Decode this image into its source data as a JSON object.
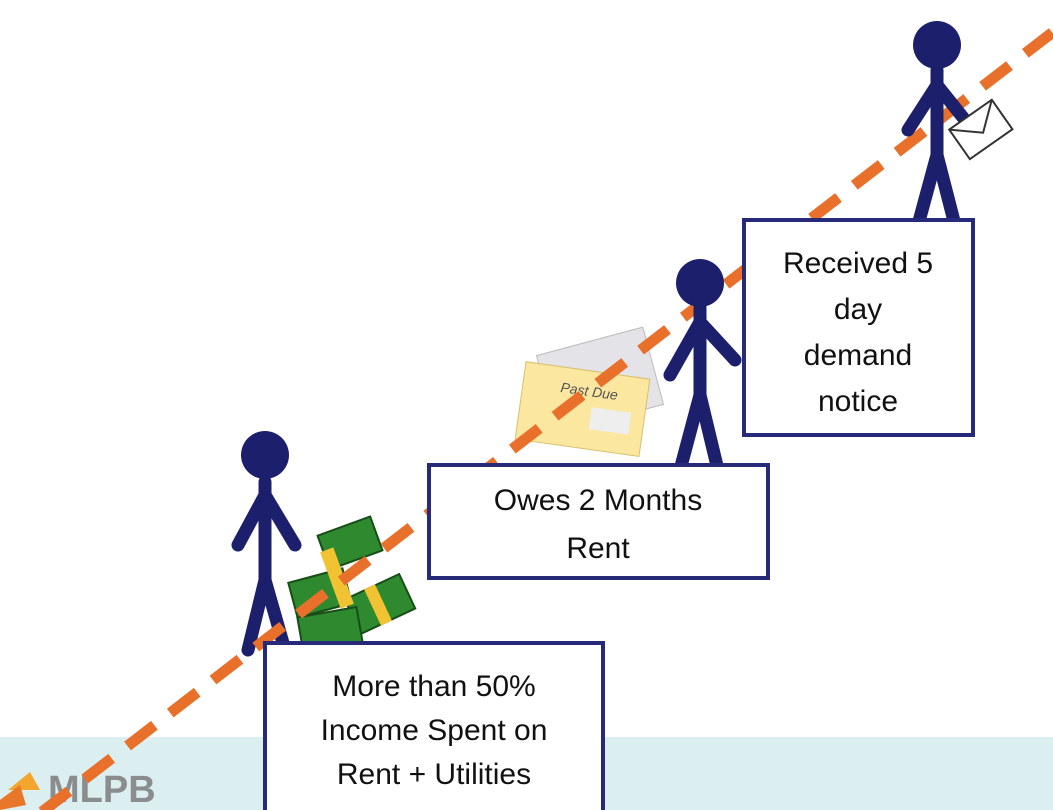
{
  "logo": {
    "text": "MLPB"
  },
  "steps": [
    {
      "lines": [
        "More than 50%",
        "Income Spent on",
        "Rent + Utilities"
      ]
    },
    {
      "lines": [
        "Owes 2 Months",
        "Rent"
      ]
    },
    {
      "lines": [
        "Received 5",
        "day",
        "demand",
        "notice"
      ]
    }
  ],
  "envelope": {
    "label": "Past Due"
  }
}
